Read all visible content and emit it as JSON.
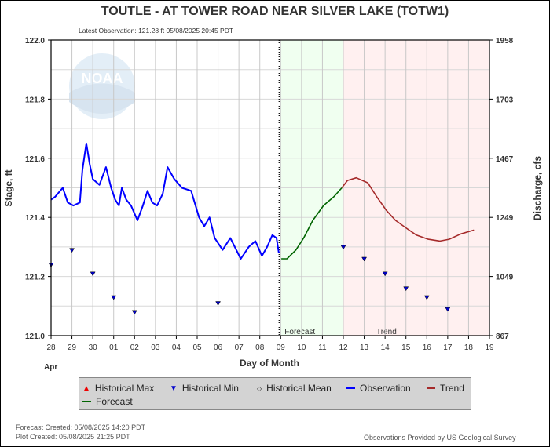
{
  "title": "TOUTLE - AT TOWER ROAD NEAR SILVER LAKE  (TOTW1)",
  "latest_observation": "Latest Observation: 121.28 ft 05/08/2025 20:45 PDT",
  "logo_text": "NOAA",
  "footer": {
    "forecast_created": "Forecast Created: 05/08/2025 14:20 PDT",
    "plot_created": "Plot Created: 05/08/2025 21:25 PDT",
    "provider": "Observations Provided by US Geological Survey"
  },
  "legend": [
    {
      "label": "Historical Max",
      "icon": "triangle-up",
      "color": "#ff0000"
    },
    {
      "label": "Historical Min",
      "icon": "triangle-down",
      "color": "#0000cc"
    },
    {
      "label": "Historical Mean",
      "icon": "diamond",
      "color": "#000000"
    },
    {
      "label": "Observation",
      "icon": "line",
      "color": "#0000ff"
    },
    {
      "label": "Trend",
      "icon": "line",
      "color": "#a52a2a"
    },
    {
      "label": "Forecast",
      "icon": "line",
      "color": "#006400"
    }
  ],
  "chart_data": {
    "type": "line",
    "title": "TOUTLE - AT TOWER ROAD NEAR SILVER LAKE  (TOTW1)",
    "xlabel": "Day of Month",
    "ylabel": "Stage, ft",
    "y2label": "Discharge, cfs",
    "month_label": "Apr",
    "x_ticks": [
      "28",
      "29",
      "30",
      "01",
      "02",
      "03",
      "04",
      "05",
      "06",
      "07",
      "08",
      "09",
      "10",
      "11",
      "12",
      "13",
      "14",
      "15",
      "16",
      "17",
      "18",
      "19"
    ],
    "x_unit": "days since Apr 28",
    "xlim": [
      0,
      21
    ],
    "ylim": [
      121.0,
      122.0
    ],
    "y_ticks": [
      "121.0",
      "121.2",
      "121.4",
      "121.6",
      "121.8",
      "122.0"
    ],
    "y2_ticks": [
      "867",
      "1049",
      "1249",
      "1467",
      "1703",
      "1958"
    ],
    "regions": [
      {
        "label": "Forecast",
        "from": 11,
        "to": 14,
        "color": "#f0fff0"
      },
      {
        "label": "Trend",
        "from": 14,
        "to": 21,
        "color": "#fff0f0"
      }
    ],
    "series": [
      {
        "name": "Observation",
        "color": "#0000ff",
        "points": [
          [
            0,
            121.46
          ],
          [
            0.2,
            121.47
          ],
          [
            0.56,
            121.5
          ],
          [
            0.8,
            121.45
          ],
          [
            1.07,
            121.44
          ],
          [
            1.38,
            121.45
          ],
          [
            1.5,
            121.56
          ],
          [
            1.69,
            121.65
          ],
          [
            1.85,
            121.58
          ],
          [
            2.0,
            121.53
          ],
          [
            2.32,
            121.51
          ],
          [
            2.63,
            121.57
          ],
          [
            2.88,
            121.5
          ],
          [
            3.07,
            121.46
          ],
          [
            3.25,
            121.44
          ],
          [
            3.39,
            121.5
          ],
          [
            3.6,
            121.46
          ],
          [
            3.83,
            121.44
          ],
          [
            4.14,
            121.39
          ],
          [
            4.4,
            121.44
          ],
          [
            4.62,
            121.49
          ],
          [
            4.85,
            121.45
          ],
          [
            5.08,
            121.44
          ],
          [
            5.35,
            121.48
          ],
          [
            5.58,
            121.57
          ],
          [
            5.9,
            121.53
          ],
          [
            6.27,
            121.5
          ],
          [
            6.71,
            121.49
          ],
          [
            7.09,
            121.4
          ],
          [
            7.34,
            121.37
          ],
          [
            7.59,
            121.4
          ],
          [
            7.84,
            121.33
          ],
          [
            8.22,
            121.29
          ],
          [
            8.59,
            121.33
          ],
          [
            9.09,
            121.26
          ],
          [
            9.47,
            121.3
          ],
          [
            9.79,
            121.32
          ],
          [
            10.1,
            121.27
          ],
          [
            10.35,
            121.3
          ],
          [
            10.6,
            121.34
          ],
          [
            10.8,
            121.33
          ],
          [
            10.91,
            121.28
          ]
        ]
      },
      {
        "name": "Forecast",
        "color": "#006400",
        "points": [
          [
            11.03,
            121.26
          ],
          [
            11.3,
            121.26
          ],
          [
            11.73,
            121.29
          ],
          [
            12.1,
            121.33
          ],
          [
            12.54,
            121.39
          ],
          [
            13.05,
            121.44
          ],
          [
            13.55,
            121.47
          ],
          [
            13.93,
            121.5
          ]
        ]
      },
      {
        "name": "Trend",
        "color": "#a52a2a",
        "points": [
          [
            13.93,
            121.5
          ],
          [
            14.2,
            121.525
          ],
          [
            14.62,
            121.534
          ],
          [
            15.17,
            121.517
          ],
          [
            15.6,
            121.47
          ],
          [
            16.06,
            121.424
          ],
          [
            16.5,
            121.39
          ],
          [
            17.05,
            121.362
          ],
          [
            17.5,
            121.34
          ],
          [
            18.07,
            121.326
          ],
          [
            18.63,
            121.32
          ],
          [
            19.07,
            121.326
          ],
          [
            19.63,
            121.344
          ],
          [
            20.26,
            121.357
          ]
        ]
      },
      {
        "name": "Historical Min",
        "color": "#0000cc",
        "marker": "triangle-down",
        "points": [
          [
            0,
            121.24
          ],
          [
            1,
            121.29
          ],
          [
            2,
            121.21
          ],
          [
            3,
            121.13
          ],
          [
            4,
            121.08
          ],
          [
            8,
            121.11
          ],
          [
            14,
            121.3
          ],
          [
            15,
            121.26
          ],
          [
            16,
            121.21
          ],
          [
            17,
            121.16
          ],
          [
            18,
            121.13
          ],
          [
            19,
            121.09
          ]
        ]
      }
    ]
  }
}
